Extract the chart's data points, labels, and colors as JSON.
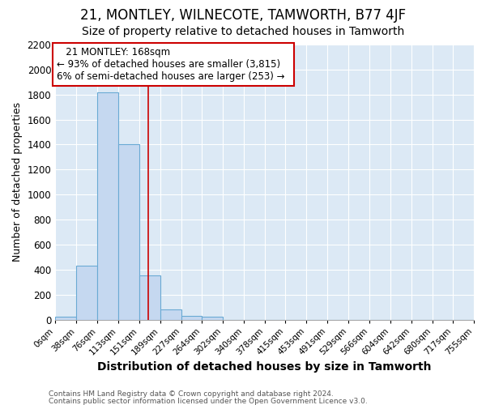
{
  "title": "21, MONTLEY, WILNECOTE, TAMWORTH, B77 4JF",
  "subtitle": "Size of property relative to detached houses in Tamworth",
  "xlabel": "Distribution of detached houses by size in Tamworth",
  "ylabel": "Number of detached properties",
  "annotation_title": "21 MONTLEY: 168sqm",
  "annotation_line1": "← 93% of detached houses are smaller (3,815)",
  "annotation_line2": "6% of semi-detached houses are larger (253) →",
  "bins": [
    0,
    38,
    76,
    113,
    151,
    189,
    227,
    264,
    302,
    340,
    378,
    415,
    453,
    491,
    529,
    566,
    604,
    642,
    680,
    717,
    755
  ],
  "bin_labels": [
    "0sqm",
    "38sqm",
    "76sqm",
    "113sqm",
    "151sqm",
    "189sqm",
    "227sqm",
    "264sqm",
    "302sqm",
    "340sqm",
    "378sqm",
    "415sqm",
    "453sqm",
    "491sqm",
    "529sqm",
    "566sqm",
    "604sqm",
    "642sqm",
    "680sqm",
    "717sqm",
    "755sqm"
  ],
  "bar_heights": [
    20,
    430,
    1820,
    1400,
    355,
    80,
    30,
    20,
    0,
    0,
    0,
    0,
    0,
    0,
    0,
    0,
    0,
    0,
    0,
    0
  ],
  "bar_color": "#c5d8f0",
  "bar_edge_color": "#6aaad4",
  "vline_color": "#cc0000",
  "vline_x": 168,
  "ylim": [
    0,
    2200
  ],
  "yticks": [
    0,
    200,
    400,
    600,
    800,
    1000,
    1200,
    1400,
    1600,
    1800,
    2000,
    2200
  ],
  "fig_bg_color": "#ffffff",
  "plot_bg_color": "#dce9f5",
  "grid_color": "#ffffff",
  "footnote_line1": "Contains HM Land Registry data © Crown copyright and database right 2024.",
  "footnote_line2": "Contains public sector information licensed under the Open Government Licence v3.0.",
  "title_fontsize": 12,
  "subtitle_fontsize": 10,
  "xlabel_fontsize": 10,
  "ylabel_fontsize": 9,
  "annotation_box_color": "#ffffff",
  "annotation_box_edge": "#cc0000"
}
